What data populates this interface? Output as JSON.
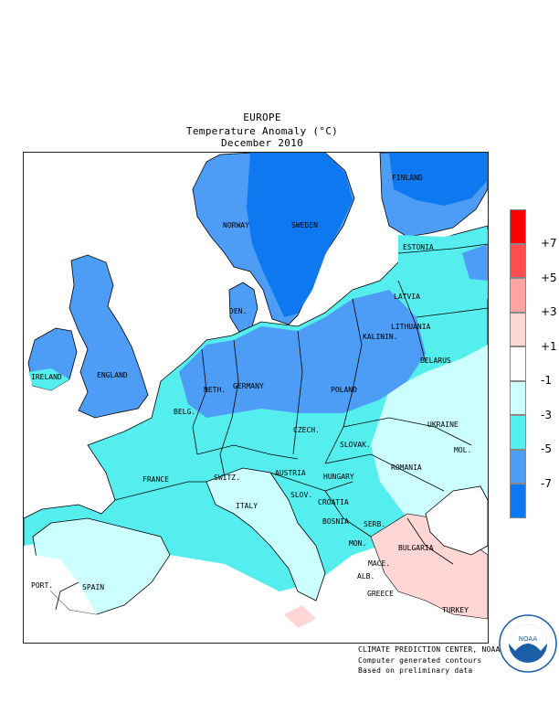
{
  "title": {
    "region": "EUROPE",
    "variable": "Temperature Anomaly (°C)",
    "period": "December 2010"
  },
  "legend": {
    "classes": [
      {
        "range": "above +7",
        "color": "#ff0000"
      },
      {
        "range": "+5 to +7",
        "color": "#ff4d4d"
      },
      {
        "range": "+3 to +5",
        "color": "#ffa3a3"
      },
      {
        "range": "+1 to +3",
        "color": "#ffd6d6"
      },
      {
        "range": "-1 to +1",
        "color": "#ffffff"
      },
      {
        "range": "-3 to -1",
        "color": "#ccffff"
      },
      {
        "range": "-5 to -3",
        "color": "#55eeee"
      },
      {
        "range": "-7 to -5",
        "color": "#4d9cf5"
      },
      {
        "range": "below -7",
        "color": "#0e78f0"
      }
    ],
    "ticks": [
      "+7",
      "+5",
      "+3",
      "+1",
      "-1",
      "-3",
      "-5",
      "-7"
    ]
  },
  "countries": [
    {
      "name": "FINLAND",
      "tag": "finland"
    },
    {
      "name": "NORWAY",
      "tag": "norway"
    },
    {
      "name": "SWEDEN",
      "tag": "sweden"
    },
    {
      "name": "ESTONIA",
      "tag": "estonia"
    },
    {
      "name": "LATVIA",
      "tag": "latvia"
    },
    {
      "name": "DEN.",
      "tag": "denmark"
    },
    {
      "name": "LITHUANIA",
      "tag": "lithuania"
    },
    {
      "name": "KALININ.",
      "tag": "kaliningrad"
    },
    {
      "name": "IRELAND",
      "tag": "ireland"
    },
    {
      "name": "ENGLAND",
      "tag": "england"
    },
    {
      "name": "NETH.",
      "tag": "netherlands"
    },
    {
      "name": "GERMANY",
      "tag": "germany"
    },
    {
      "name": "POLAND",
      "tag": "poland"
    },
    {
      "name": "BELARUS",
      "tag": "belarus"
    },
    {
      "name": "BELG.",
      "tag": "belgium"
    },
    {
      "name": "CZECH.",
      "tag": "czech"
    },
    {
      "name": "UKRAINE",
      "tag": "ukraine"
    },
    {
      "name": "SLOVAK.",
      "tag": "slovakia"
    },
    {
      "name": "FRANCE",
      "tag": "france"
    },
    {
      "name": "SWITZ.",
      "tag": "switzerland"
    },
    {
      "name": "AUSTRIA",
      "tag": "austria"
    },
    {
      "name": "HUNGARY",
      "tag": "hungary"
    },
    {
      "name": "MOL.",
      "tag": "moldova"
    },
    {
      "name": "ROMANIA",
      "tag": "romania"
    },
    {
      "name": "SLOV.",
      "tag": "slovenia"
    },
    {
      "name": "CROATIA",
      "tag": "croatia"
    },
    {
      "name": "ITALY",
      "tag": "italy"
    },
    {
      "name": "BOSNIA",
      "tag": "bosnia"
    },
    {
      "name": "SERB.",
      "tag": "serbia"
    },
    {
      "name": "MON.",
      "tag": "montenegro"
    },
    {
      "name": "BULGARIA",
      "tag": "bulgaria"
    },
    {
      "name": "MACE.",
      "tag": "macedonia"
    },
    {
      "name": "ALB.",
      "tag": "albania"
    },
    {
      "name": "PORT.",
      "tag": "portugal"
    },
    {
      "name": "SPAIN",
      "tag": "spain"
    },
    {
      "name": "GREECE",
      "tag": "greece"
    },
    {
      "name": "TURKEY",
      "tag": "turkey"
    }
  ],
  "credits": {
    "line1": "CLIMATE PREDICTION CENTER, NOAA",
    "line2": "Computer generated contours",
    "line3": "Based on preliminary data"
  },
  "logo": {
    "text": "NOAA",
    "ring_text": "NATIONAL OCEANIC AND ATMOSPHERIC ADMINISTRATION · U.S. DEPARTMENT OF COMMERCE",
    "colors": {
      "ring": "#1a5ea8",
      "wave": "#1a5ea8",
      "sky": "#ffffff"
    }
  }
}
